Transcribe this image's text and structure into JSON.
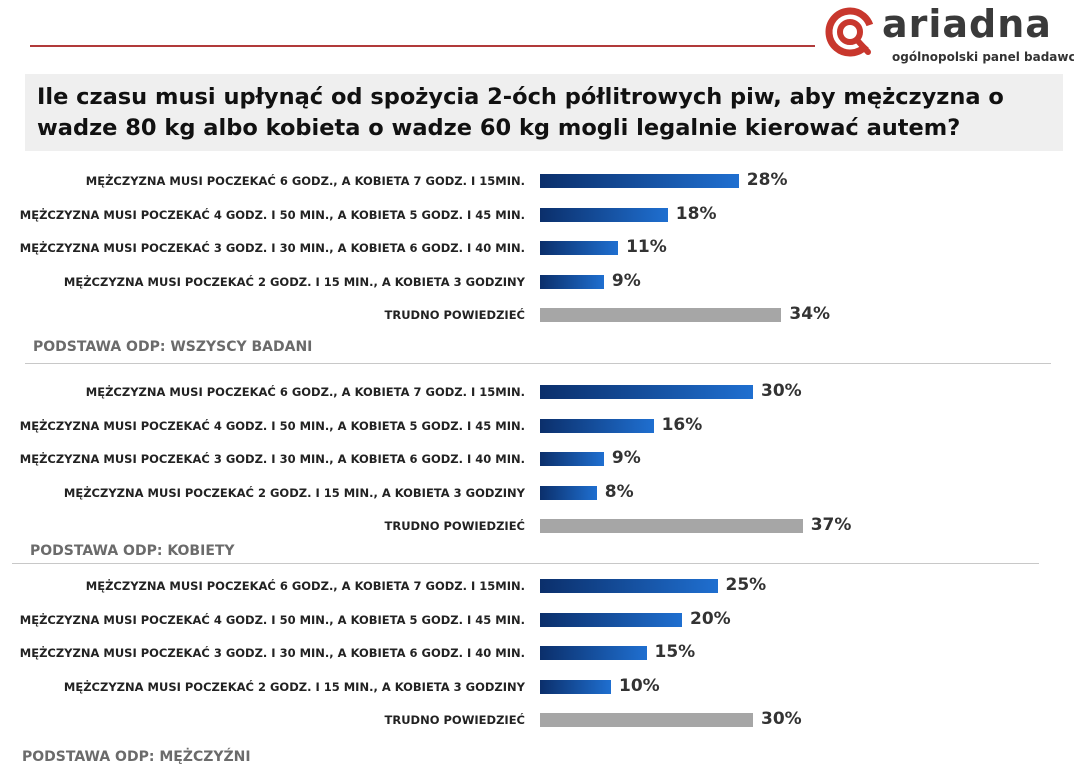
{
  "header": {
    "logo_text": "ariadna",
    "logo_tagline": "ogólnopolski panel badawczy",
    "brand_color": "#c8372d"
  },
  "title": "Ile czasu musi upłynąć od spożycia 2-óch półlitrowych piw, aby mężczyzna o wadze 80 kg albo kobieta o wadze 60 kg mogli legalnie kierować autem?",
  "chart_data": [
    {
      "type": "bar",
      "orientation": "horizontal",
      "base": "PODSTAWA ODP: WSZYSCY BADANI",
      "categories": [
        "MĘŻCZYZNA MUSI POCZEKAĆ 6 GODZ., A KOBIETA 7 GODZ. I 15MIN.",
        "MĘŻCZYZNA MUSI POCZEKAĆ 4 GODZ. I 50 MIN., A KOBIETA 5 GODZ. I 45 MIN.",
        "MĘŻCZYZNA MUSI POCZEKAĆ 3 GODZ. I 30 MIN., A KOBIETA 6 GODZ. I 40 MIN.",
        "MĘŻCZYZNA MUSI POCZEKAĆ 2 GODZ. I 15 MIN., A KOBIETA 3 GODZINY",
        "TRUDNO POWIEDZIEĆ"
      ],
      "values": [
        28,
        18,
        11,
        9,
        34
      ],
      "labels": [
        "28%",
        "18%",
        "11%",
        "9%",
        "34%"
      ],
      "bar_colors": [
        "blue",
        "blue",
        "blue",
        "blue",
        "gray"
      ]
    },
    {
      "type": "bar",
      "orientation": "horizontal",
      "base": "PODSTAWA ODP: KOBIETY",
      "categories": [
        "MĘŻCZYZNA MUSI POCZEKAĆ 6 GODZ., A KOBIETA 7 GODZ. I 15MIN.",
        "MĘŻCZYZNA MUSI POCZEKAĆ 4 GODZ. I 50 MIN., A KOBIETA 5 GODZ. I 45 MIN.",
        "MĘŻCZYZNA MUSI POCZEKAĆ 3 GODZ. I 30 MIN., A KOBIETA 6 GODZ. I 40 MIN.",
        "MĘŻCZYZNA MUSI POCZEKAĆ 2 GODZ. I 15 MIN., A KOBIETA 3 GODZINY",
        "TRUDNO POWIEDZIEĆ"
      ],
      "values": [
        30,
        16,
        9,
        8,
        37
      ],
      "labels": [
        "30%",
        "16%",
        "9%",
        "8%",
        "37%"
      ],
      "bar_colors": [
        "blue",
        "blue",
        "blue",
        "blue",
        "gray"
      ]
    },
    {
      "type": "bar",
      "orientation": "horizontal",
      "base": "PODSTAWA ODP: MĘŻCZYŹNI",
      "categories": [
        "MĘŻCZYZNA MUSI POCZEKAĆ 6 GODZ., A KOBIETA 7 GODZ. I 15MIN.",
        "MĘŻCZYZNA MUSI POCZEKAĆ 4 GODZ. I 50 MIN., A KOBIETA 5 GODZ. I 45 MIN.",
        "MĘŻCZYZNA MUSI POCZEKAĆ 3 GODZ. I 30 MIN., A KOBIETA 6 GODZ. I 40 MIN.",
        "MĘŻCZYZNA MUSI POCZEKAĆ 2 GODZ. I 15 MIN., A KOBIETA 3 GODZINY",
        "TRUDNO POWIEDZIEĆ"
      ],
      "values": [
        25,
        20,
        15,
        10,
        30
      ],
      "labels": [
        "25%",
        "20%",
        "15%",
        "10%",
        "30%"
      ],
      "bar_colors": [
        "blue",
        "blue",
        "blue",
        "blue",
        "gray"
      ]
    }
  ],
  "colors": {
    "bar_blue_dark": "#0b2f6b",
    "bar_blue_light": "#1f6fd0",
    "bar_gray": "#a6a6a6",
    "rule": "#b13a3a"
  }
}
